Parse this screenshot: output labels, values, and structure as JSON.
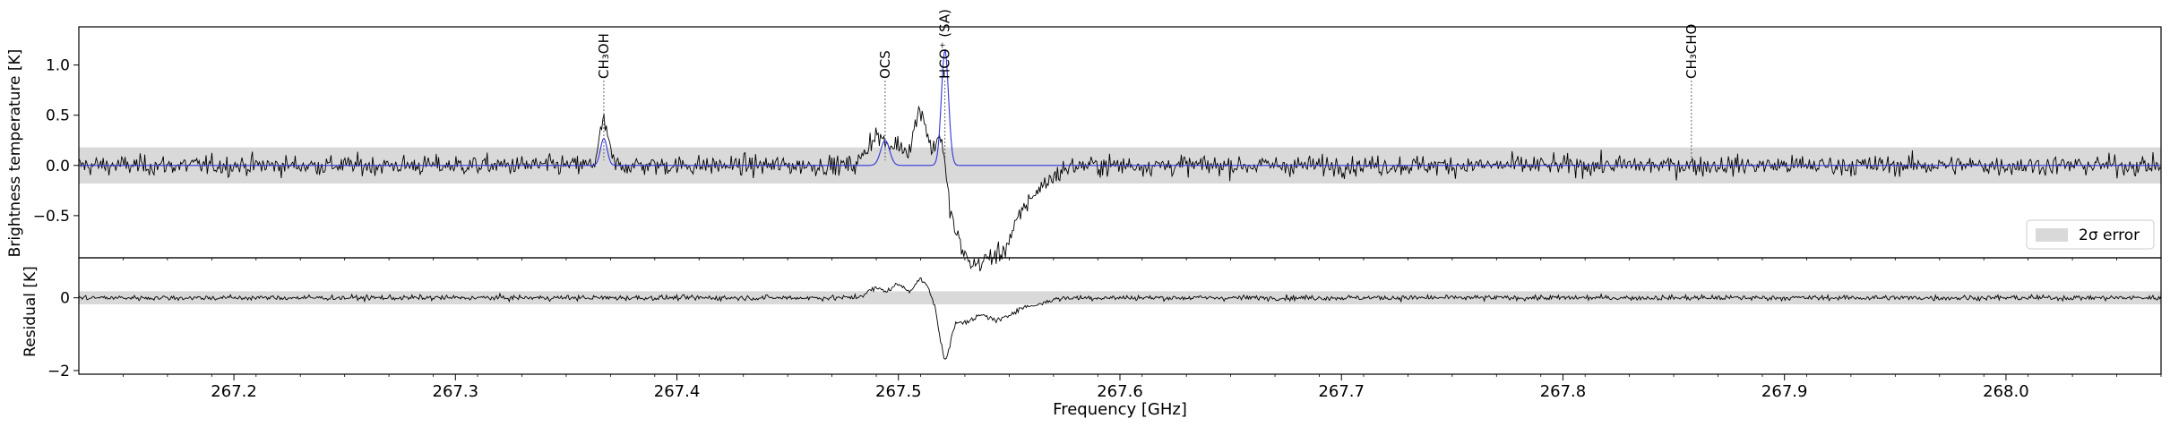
{
  "chart_data": [
    {
      "type": "line",
      "panel": "spectrum",
      "ylabel": "Brightness temperature [K]",
      "xlim": [
        267.13,
        268.07
      ],
      "ylim": [
        -0.92,
        1.38
      ],
      "yticks": [
        -0.5,
        0.0,
        0.5,
        1.0
      ],
      "ytick_labels": [
        "−0.5",
        "0.0",
        "0.5",
        "1.0"
      ],
      "error_band": {
        "label": "2σ error",
        "lower": -0.18,
        "upper": 0.18,
        "color": "#d9d9d9"
      },
      "legend": {
        "entries": [
          "2σ error"
        ],
        "placement": "lower-right"
      },
      "series": [
        {
          "role": "observed",
          "color": "#000000",
          "baseline_noise_rms": 0.07,
          "features": [
            {
              "x": 267.367,
              "amp": 0.42,
              "width": 0.002
            },
            {
              "x": 267.49,
              "amp": 0.3,
              "width": 0.004
            },
            {
              "x": 267.5,
              "amp": 0.2,
              "width": 0.003
            },
            {
              "x": 267.51,
              "amp": 0.55,
              "width": 0.003
            },
            {
              "x": 267.519,
              "amp": 0.45,
              "width": 0.002
            },
            {
              "x": 267.527,
              "amp": -0.58,
              "width": 0.005
            },
            {
              "x": 267.533,
              "amp": -0.45,
              "width": 0.004
            },
            {
              "x": 267.538,
              "amp": -0.45,
              "width": 0.004
            },
            {
              "x": 267.545,
              "amp": -0.62,
              "width": 0.005
            },
            {
              "x": 267.553,
              "amp": -0.4,
              "width": 0.006
            },
            {
              "x": 267.565,
              "amp": -0.15,
              "width": 0.006
            }
          ]
        },
        {
          "role": "model",
          "color": "#3333dd",
          "features": [
            {
              "x": 267.367,
              "amp": 0.27,
              "width": 0.0015
            },
            {
              "x": 267.494,
              "amp": 0.25,
              "width": 0.002
            },
            {
              "x": 267.521,
              "amp": 1.15,
              "width": 0.0016
            }
          ]
        }
      ],
      "annotations": [
        {
          "x": 267.367,
          "label": "CH₃OH"
        },
        {
          "x": 267.494,
          "label": "OCS"
        },
        {
          "x": 267.521,
          "label": "HCO⁺ (SA)"
        },
        {
          "x": 267.858,
          "label": "CH₃CHO"
        }
      ]
    },
    {
      "type": "line",
      "panel": "residual",
      "ylabel": "Residual [K]",
      "xlabel": "Frequency [GHz]",
      "xlim": [
        267.13,
        268.07
      ],
      "ylim": [
        -2.1,
        1.1
      ],
      "yticks": [
        -2,
        0
      ],
      "ytick_labels": [
        "−2",
        "0"
      ],
      "xticks": [
        267.2,
        267.3,
        267.4,
        267.5,
        267.6,
        267.7,
        267.8,
        267.9,
        268.0
      ],
      "xtick_labels": [
        "267.2",
        "267.3",
        "267.4",
        "267.5",
        "267.6",
        "267.7",
        "267.8",
        "267.9",
        "268.0"
      ],
      "error_band": {
        "lower": -0.18,
        "upper": 0.18,
        "color": "#d9d9d9"
      },
      "series": [
        {
          "role": "residual",
          "color": "#000000",
          "baseline_noise_rms": 0.05,
          "features": [
            {
              "x": 267.49,
              "amp": 0.25,
              "width": 0.004
            },
            {
              "x": 267.5,
              "amp": 0.35,
              "width": 0.003
            },
            {
              "x": 267.51,
              "amp": 0.5,
              "width": 0.003
            },
            {
              "x": 267.521,
              "amp": -1.55,
              "width": 0.0025
            },
            {
              "x": 267.53,
              "amp": -0.65,
              "width": 0.005
            },
            {
              "x": 267.545,
              "amp": -0.6,
              "width": 0.006
            },
            {
              "x": 267.56,
              "amp": -0.2,
              "width": 0.006
            }
          ]
        }
      ]
    }
  ]
}
